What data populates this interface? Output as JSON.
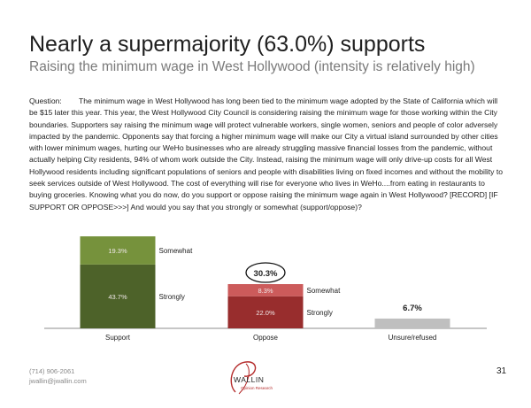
{
  "slide": {
    "title": "Nearly a supermajority (63.0%) supports",
    "subtitle": "Raising the minimum wage in West Hollywood (intensity is relatively high)",
    "question_label": "Question:",
    "question_text": "The minimum wage in West Hollywood has long been tied to the minimum wage adopted by the State of California which will be $15 later this year. This year, the West Hollywood City Council is considering raising the minimum wage for those working within the City boundaries. Supporters say raising the minimum wage will protect vulnerable workers, single women, seniors and people of color adversely impacted by the pandemic. Opponents say that forcing a higher minimum wage will make our City a virtual island surrounded by other cities with lower minimum wages, hurting our WeHo businesses who are already struggling massive financial losses from the pandemic, without actually helping City residents, 94% of whom work outside the City. Instead, raising the minimum wage will only drive-up costs for all West Hollywood residents including significant populations of seniors and people with disabilities living on fixed incomes and without the mobility to seek services outside of West Hollywood. The cost of everything will rise for everyone who lives in WeHo....from eating in restaurants to buying groceries. Knowing what you do now, do you support or oppose raising the minimum wage again in West Hollywood? [RECORD] [IF SUPPORT OR OPPOSE>>>] And would you say that you strongly or somewhat (support/oppose)?",
    "page_number": "31"
  },
  "footer": {
    "phone": "(714) 906-2061",
    "email": "jwallin@jwallin.com",
    "logo_text": "WALLIN",
    "logo_tagline": "Opinion Research"
  },
  "chart_data": {
    "type": "bar",
    "stacked": true,
    "categories": [
      "Support",
      "Oppose",
      "Unsure/refused"
    ],
    "totals": [
      "63.0%",
      "30.3%",
      "6.7%"
    ],
    "highlighted_total": "Oppose",
    "ylim": [
      0,
      70
    ],
    "bars": [
      {
        "category": "Support",
        "total": 63.0,
        "segments": [
          {
            "name": "Strongly",
            "value": 43.7,
            "label": "43.7%",
            "color": "#4d6229"
          },
          {
            "name": "Somewhat",
            "value": 19.3,
            "label": "19.3%",
            "color": "#76923c"
          }
        ]
      },
      {
        "category": "Oppose",
        "total": 30.3,
        "segments": [
          {
            "name": "Strongly",
            "value": 22.0,
            "label": "22.0%",
            "color": "#982d2d"
          },
          {
            "name": "Somewhat",
            "value": 8.3,
            "label": "8.3%",
            "color": "#cc5b5b"
          }
        ]
      },
      {
        "category": "Unsure/refused",
        "total": 6.7,
        "segments": [
          {
            "name": "",
            "value": 6.7,
            "label": "",
            "color": "#bfbfbf"
          }
        ]
      }
    ]
  }
}
